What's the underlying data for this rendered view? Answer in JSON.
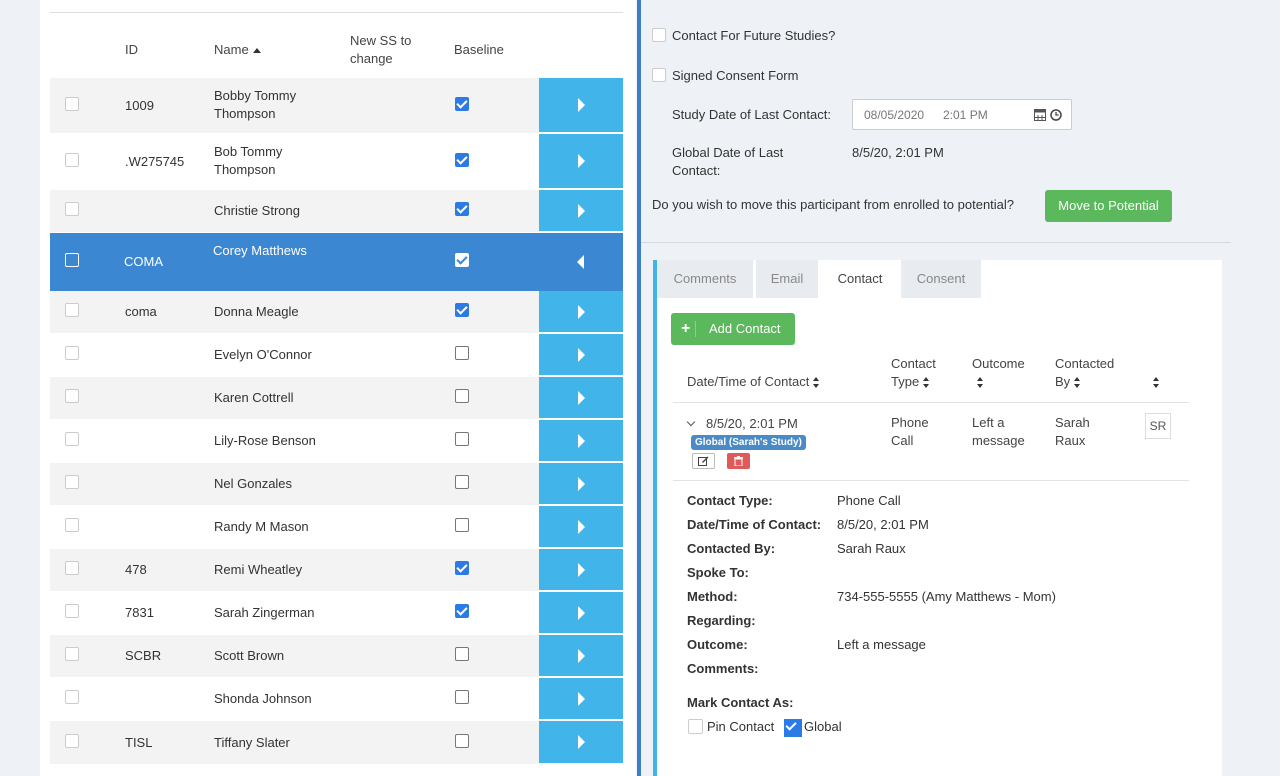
{
  "participants": {
    "headers": {
      "id": "ID",
      "name": "Name",
      "new_ss_line1": "New SS to",
      "new_ss_line2": "change",
      "baseline": "Baseline"
    },
    "rows": [
      {
        "id": "1009",
        "name": "Bobby Tommy Thompson",
        "baseline": true
      },
      {
        "id": ".W275745",
        "name": "Bob Tommy Thompson",
        "baseline": true
      },
      {
        "id": "",
        "name": "Christie Strong",
        "baseline": true
      },
      {
        "id": "COMA",
        "name": "Corey Matthews",
        "baseline": true,
        "selected": true
      },
      {
        "id": "coma",
        "name": "Donna Meagle",
        "baseline": true
      },
      {
        "id": "",
        "name": "Evelyn O'Connor",
        "baseline": false
      },
      {
        "id": "",
        "name": "Karen Cottrell",
        "baseline": false
      },
      {
        "id": "",
        "name": "Lily-Rose Benson",
        "baseline": false
      },
      {
        "id": "",
        "name": "Nel Gonzales",
        "baseline": false
      },
      {
        "id": "",
        "name": "Randy M Mason",
        "baseline": false
      },
      {
        "id": "478",
        "name": "Remi Wheatley",
        "baseline": true
      },
      {
        "id": "7831",
        "name": "Sarah Zingerman",
        "baseline": true
      },
      {
        "id": "SCBR",
        "name": "Scott Brown",
        "baseline": false
      },
      {
        "id": "",
        "name": "Shonda Johnson",
        "baseline": false
      },
      {
        "id": "TISL",
        "name": "Tiffany Slater",
        "baseline": false
      }
    ]
  },
  "details": {
    "future_studies_label": "Contact For Future Studies?",
    "consent_form_label": "Signed Consent Form",
    "study_last_contact_label": "Study Date of Last Contact:",
    "study_last_contact_date": "08/05/2020",
    "study_last_contact_time": "2:01 PM",
    "global_last_contact_label_1": "Global Date of Last",
    "global_last_contact_label_2": "Contact:",
    "global_last_contact_value": "8/5/20, 2:01 PM",
    "move_question": "Do you wish to move this participant from enrolled to potential?",
    "move_button": "Move to Potential"
  },
  "tabs": [
    "Comments",
    "Email",
    "Contact",
    "Consent"
  ],
  "active_tab": "Contact",
  "contacts": {
    "add_button": "Add Contact",
    "headers": {
      "datetime": "Date/Time of Contact",
      "type_1": "Contact",
      "type_2": "Type",
      "outcome": "Outcome",
      "by_1": "Contacted",
      "by_2": "By"
    },
    "row": {
      "datetime": "8/5/20, 2:01 PM",
      "badge": "Global (Sarah's Study)",
      "type_1": "Phone",
      "type_2": "Call",
      "outcome_1": "Left a",
      "outcome_2": "message",
      "by_1": "Sarah",
      "by_2": "Raux",
      "initials": "SR"
    },
    "detail": [
      {
        "key": "Contact Type:",
        "value": "Phone Call"
      },
      {
        "key": "Date/Time of Contact:",
        "value": "8/5/20, 2:01 PM"
      },
      {
        "key": "Contacted By:",
        "value": "Sarah Raux"
      },
      {
        "key": "Spoke To:",
        "value": ""
      },
      {
        "key": "Method:",
        "value": "734-555-5555 (Amy Matthews - Mom)"
      },
      {
        "key": "Regarding:",
        "value": ""
      },
      {
        "key": "Outcome:",
        "value": "Left a message"
      },
      {
        "key": "Comments:",
        "value": ""
      }
    ],
    "mark_as_label": "Mark Contact As:",
    "pin_label": "Pin Contact",
    "pin_checked": false,
    "global_label": "Global",
    "global_checked": true
  },
  "colors": {
    "selected_row": "#3c87d2",
    "action_blue": "#41b5ea",
    "green": "#5cb85c",
    "badge": "#4a8ac6",
    "delete_red": "#e05a5a"
  }
}
